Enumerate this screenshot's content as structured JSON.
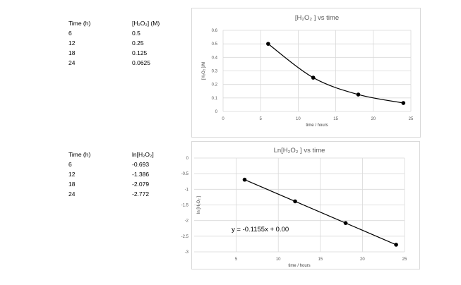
{
  "tables": [
    {
      "headers": [
        "Time (h)",
        "[H₂O₂] (M)"
      ],
      "rows": [
        [
          "6",
          "0.5"
        ],
        [
          "12",
          "0.25"
        ],
        [
          "18",
          "0.125"
        ],
        [
          "24",
          "0.0625"
        ]
      ]
    },
    {
      "headers": [
        "Time (h)",
        "ln[H₂O₂]"
      ],
      "rows": [
        [
          "6",
          "-0.693"
        ],
        [
          "12",
          "-1.386"
        ],
        [
          "18",
          "-2.079"
        ],
        [
          "24",
          "-2.772"
        ]
      ]
    }
  ],
  "chart_data": [
    {
      "type": "line",
      "title": "[H₂O₂ ] vs time",
      "xlabel": "time / hours",
      "ylabel": "[H₂O₂ ]/M",
      "xlim": [
        0,
        25
      ],
      "ylim": [
        0,
        0.6
      ],
      "x_ticks": [
        0,
        5,
        10,
        15,
        20,
        25
      ],
      "y_ticks": [
        0,
        0.1,
        0.2,
        0.3,
        0.4,
        0.5,
        0.6
      ],
      "x_tick_labels": [
        "0",
        "5",
        "10",
        "15",
        "20",
        "25"
      ],
      "y_tick_labels": [
        "0",
        "0.1",
        "0.2",
        "0.3",
        "0.4",
        "0.5",
        "0.6"
      ],
      "grid": true,
      "smooth": true,
      "series": [
        {
          "x": [
            6,
            12,
            18,
            24
          ],
          "y": [
            0.5,
            0.25,
            0.125,
            0.0625
          ]
        }
      ]
    },
    {
      "type": "line",
      "title": "Ln[H₂O₂ ] vs time",
      "xlabel": "time / hours",
      "ylabel": "ln [H₂O₂ ]",
      "xlim": [
        0,
        25
      ],
      "ylim": [
        -3,
        0
      ],
      "x_ticks": [
        5,
        10,
        15,
        20,
        25
      ],
      "y_ticks": [
        0,
        -0.5,
        -1,
        -1.5,
        -2,
        -2.5,
        -3
      ],
      "x_tick_labels": [
        "5",
        "10",
        "15",
        "20",
        "25"
      ],
      "y_tick_labels": [
        "0",
        "-0.5",
        "-1",
        "-1.5",
        "-2",
        "-2.5",
        "-3"
      ],
      "grid": true,
      "smooth": false,
      "annotation": "y = -0.1155x + 0.00",
      "series": [
        {
          "x": [
            6,
            12,
            18,
            24
          ],
          "y": [
            -0.693,
            -1.386,
            -2.079,
            -2.772
          ]
        }
      ]
    }
  ]
}
